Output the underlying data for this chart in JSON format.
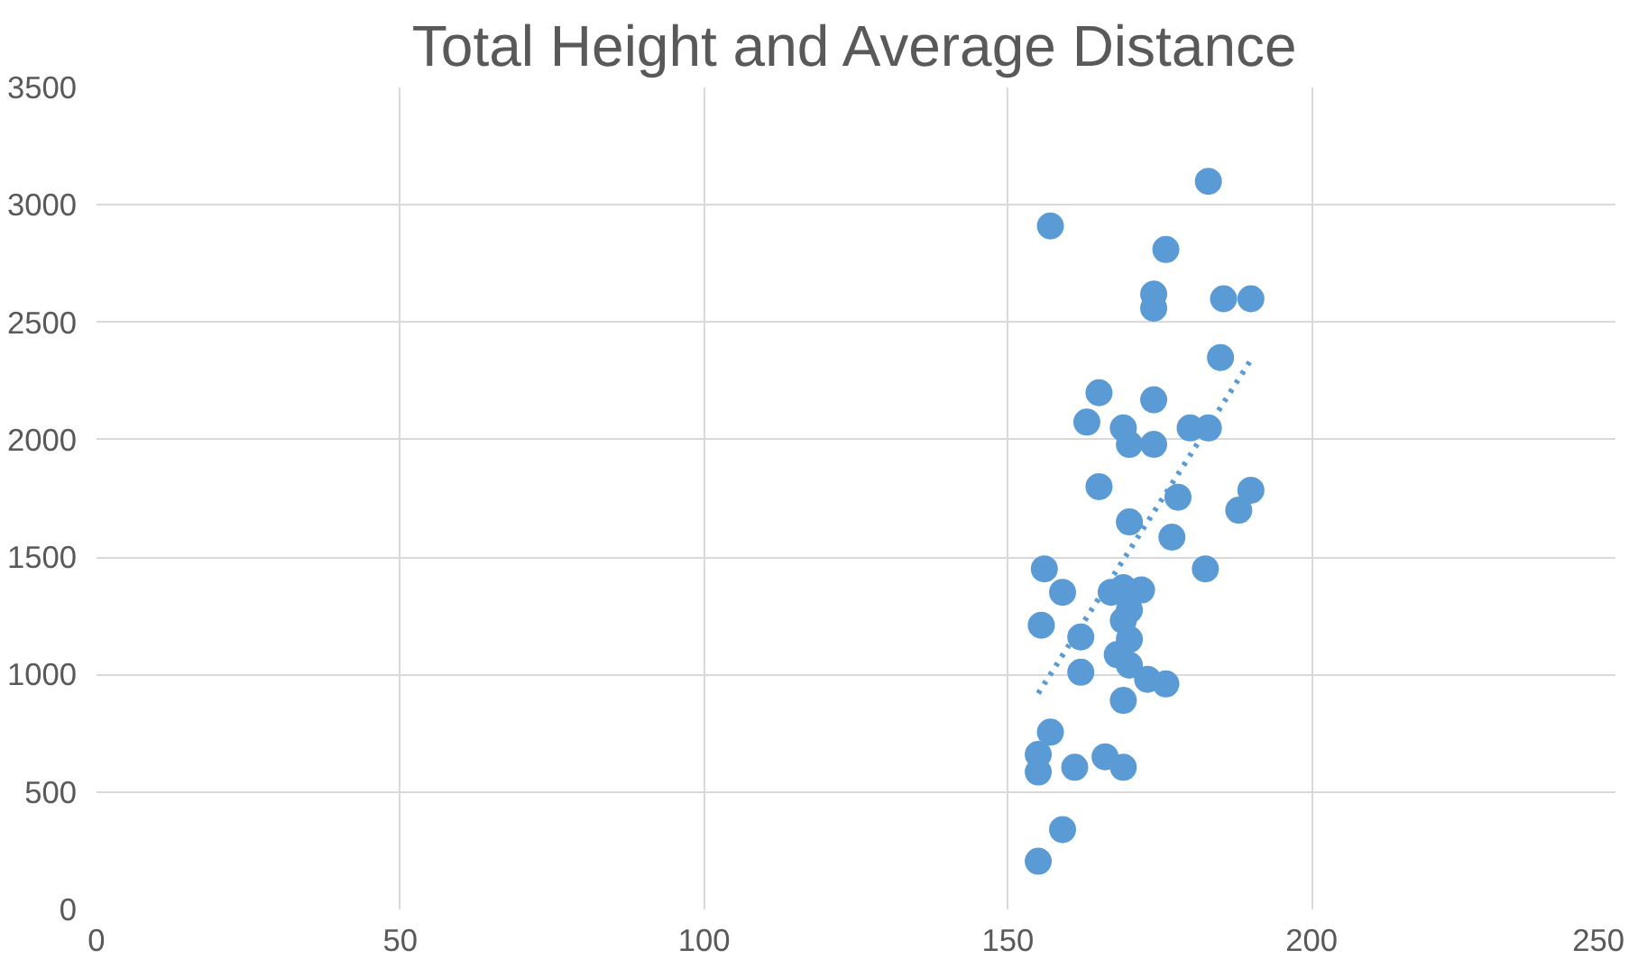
{
  "chart_data": {
    "type": "scatter",
    "title": "Total Height and Average Distance",
    "xlim": [
      0,
      250
    ],
    "xticks": [
      0,
      50,
      100,
      150,
      200,
      250
    ],
    "ylim": [
      0,
      3500
    ],
    "yticks": [
      0,
      500,
      1000,
      1500,
      2000,
      2500,
      3000,
      3500
    ],
    "grid": true,
    "marker": "circle",
    "series": [
      {
        "color": "#5b9bd5",
        "x": [
          183,
          157,
          176,
          174,
          174,
          185.5,
          190,
          185,
          165,
          174,
          163,
          169,
          170,
          174,
          180,
          183,
          165,
          190,
          188,
          178,
          170,
          177,
          156,
          182.5,
          159,
          167,
          169,
          172,
          170,
          155.5,
          162,
          169,
          170,
          168,
          170,
          162,
          173,
          176,
          169,
          157,
          155,
          155,
          161,
          166,
          169,
          159,
          155
        ],
        "values": [
          3100,
          2910,
          2810,
          2620,
          2560,
          2600,
          2600,
          2350,
          2200,
          2170,
          2075,
          2050,
          1980,
          1980,
          2050,
          2050,
          1800,
          1785,
          1700,
          1755,
          1650,
          1585,
          1450,
          1450,
          1350,
          1350,
          1370,
          1360,
          1275,
          1210,
          1160,
          1230,
          1150,
          1085,
          1040,
          1010,
          980,
          960,
          890,
          755,
          660,
          585,
          605,
          650,
          605,
          340,
          205
        ]
      },
      {
        "type": "line",
        "line_style": "dotted",
        "marker": "none",
        "color": "#5b9bd5",
        "x": [
          155,
          190
        ],
        "values": [
          920,
          2340
        ]
      }
    ]
  }
}
